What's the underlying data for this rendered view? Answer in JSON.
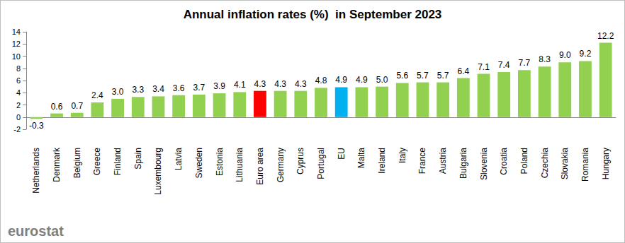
{
  "chart_data": {
    "type": "bar",
    "title": "Annual inflation rates (%)  in September 2023",
    "categories": [
      "Netherlands",
      "Denmark",
      "Belgium",
      "Greece",
      "Finland",
      "Spain",
      "Luxembourg",
      "Latvia",
      "Sweden",
      "Estonia",
      "Lithuania",
      "Euro area",
      "Germany",
      "Cyprus",
      "Portugal",
      "EU",
      "Malta",
      "Ireland",
      "Italy",
      "France",
      "Austria",
      "Bulgaria",
      "Slovenia",
      "Croatia",
      "Poland",
      "Czechia",
      "Slovakia",
      "Romania",
      "Hungary"
    ],
    "values": [
      -0.3,
      0.6,
      0.7,
      2.4,
      3.0,
      3.3,
      3.4,
      3.6,
      3.7,
      3.9,
      4.1,
      4.3,
      4.3,
      4.3,
      4.8,
      4.9,
      4.9,
      5.0,
      5.6,
      5.7,
      5.7,
      6.4,
      7.1,
      7.4,
      7.7,
      8.3,
      9.0,
      9.2,
      12.2
    ],
    "value_labels": [
      "-0.3",
      "0.6",
      "0.7",
      "2.4",
      "3.0",
      "3.3",
      "3.4",
      "3.6",
      "3.7",
      "3.9",
      "4.1",
      "4.3",
      "4.3",
      "4.3",
      "4.8",
      "4.9",
      "4.9",
      "5.0",
      "5.6",
      "5.7",
      "5.7",
      "6.4",
      "7.1",
      "7.4",
      "7.7",
      "8.3",
      "9.0",
      "9.2",
      "12.2"
    ],
    "colors": [
      "#92d050",
      "#92d050",
      "#92d050",
      "#92d050",
      "#92d050",
      "#92d050",
      "#92d050",
      "#92d050",
      "#92d050",
      "#92d050",
      "#92d050",
      "#ff0000",
      "#92d050",
      "#92d050",
      "#92d050",
      "#00b0f0",
      "#92d050",
      "#92d050",
      "#92d050",
      "#92d050",
      "#92d050",
      "#92d050",
      "#92d050",
      "#92d050",
      "#92d050",
      "#92d050",
      "#92d050",
      "#92d050",
      "#92d050"
    ],
    "ylim": [
      -2,
      14
    ],
    "yticks": [
      -2,
      0,
      2,
      4,
      6,
      8,
      10,
      12,
      14
    ],
    "grid": false,
    "data_labels": true,
    "annotations": [
      "eurostat"
    ]
  }
}
